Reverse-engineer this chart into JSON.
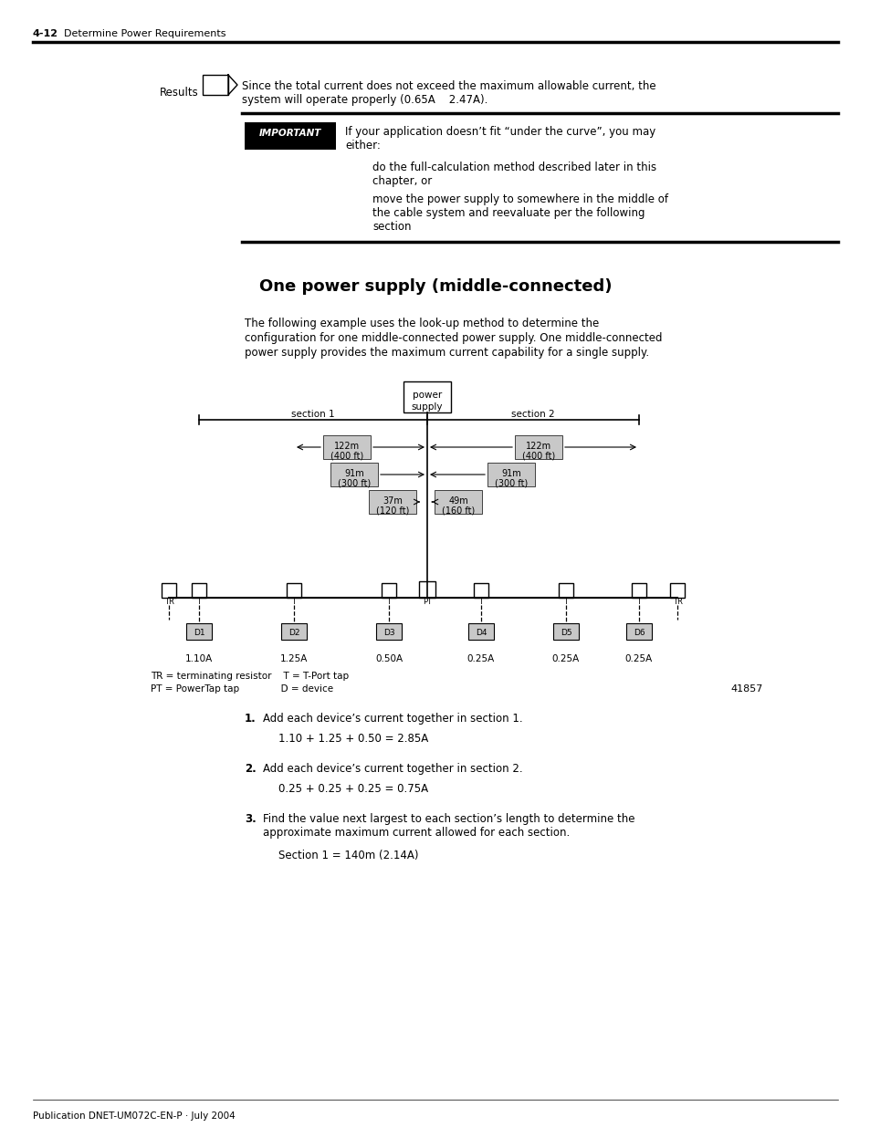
{
  "page_header_bold": "4-12",
  "page_header_text": "Determine Power Requirements",
  "results_label": "Results",
  "results_text_line1": "Since the total current does not exceed the maximum allowable current, the",
  "results_text_line2": "system will operate properly (0.65A    2.47A).",
  "important_label": "IMPORTANT",
  "important_text_line1": "If your application doesn’t fit “under the curve”, you may",
  "important_text_line2": "either:",
  "bullet1_line1": "do the full-calculation method described later in this",
  "bullet1_line2": "chapter, or",
  "bullet2_line1": "move the power supply to somewhere in the middle of",
  "bullet2_line2": "the cable system and reevaluate per the following",
  "bullet2_line3": "section",
  "section_title": "One power supply (middle-connected)",
  "para1_line1": "The following example uses the look-up method to determine the",
  "para1_line2": "configuration for one middle-connected power supply. One middle-connected",
  "para1_line3": "power supply provides the maximum current capability for a single supply.",
  "diagram_note1": "41857",
  "legend_line1": "TR = terminating resistor    T = T-Port tap",
  "legend_line2": "PT = PowerTap tap              D = device",
  "step1_eq": "1.10 + 1.25 + 0.50 = 2.85A",
  "step2_eq": "0.25 + 0.25 + 0.25 = 0.75A",
  "step3_eq": "Section 1 = 140m (2.14A)",
  "footer_text": "Publication DNET-UM072C-EN-P · July 2004",
  "bg_color": "#ffffff",
  "text_color": "#000000",
  "important_bg": "#000000",
  "important_text_color": "#ffffff",
  "lbl_bg_color": "#c8c8c8"
}
